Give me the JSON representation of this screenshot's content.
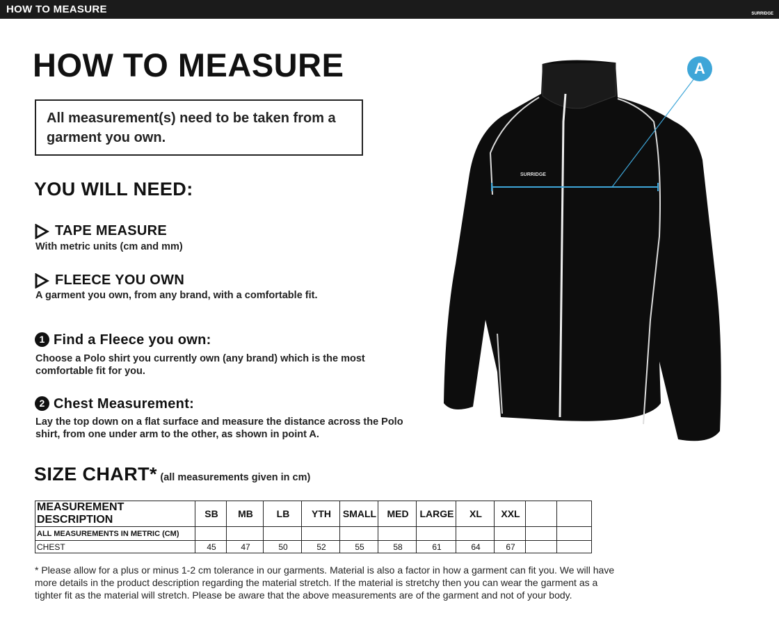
{
  "header": {
    "bar_title": "HOW TO MEASURE",
    "brand": "SURRIDGE"
  },
  "title": "HOW TO MEASURE",
  "notice": "All measurement(s) need to be taken from a garment you own.",
  "need": {
    "heading": "YOU WILL NEED:",
    "items": [
      {
        "title": "TAPE MEASURE",
        "text": "With metric units (cm and mm)"
      },
      {
        "title": "FLEECE YOU OWN",
        "text": "A garment you own, from any brand, with a comfortable fit."
      }
    ]
  },
  "steps": [
    {
      "number": "1",
      "title": "Find a Fleece you own:",
      "text": "Choose a Polo shirt you currently own (any brand) which is the most comfortable fit for you."
    },
    {
      "number": "2",
      "title": "Chest Measurement:",
      "text": "Lay the top down on a flat surface and measure the distance across the Polo shirt, from one under arm to the other, as shown in point A."
    }
  ],
  "size_chart": {
    "heading": "SIZE CHART*",
    "note": "(all measurements given in cm)",
    "header": [
      "MEASUREMENT DESCRIPTION",
      "SB",
      "MB",
      "LB",
      "YTH",
      "SMALL",
      "MED",
      "LARGE",
      "XL",
      "XXL"
    ],
    "rows": [
      [
        "ALL MEASUREMENTS IN METRIC (CM)"
      ],
      [
        "CHEST",
        45,
        47,
        50,
        52,
        55,
        58,
        61,
        64,
        67
      ]
    ]
  },
  "footnote": "* Please allow for a plus or minus 1-2 cm tolerance in our garments. Material is also a factor in how a garment can fit you. We will have more details in the product description regarding the material stretch.  If the material is stretchy then you can wear the garment as a tighter fit as the material will stretch.  Please be aware that the above measurements are of the garment and not of your body.",
  "diagram": {
    "marker": "A",
    "logo": "SURRIDGE"
  }
}
